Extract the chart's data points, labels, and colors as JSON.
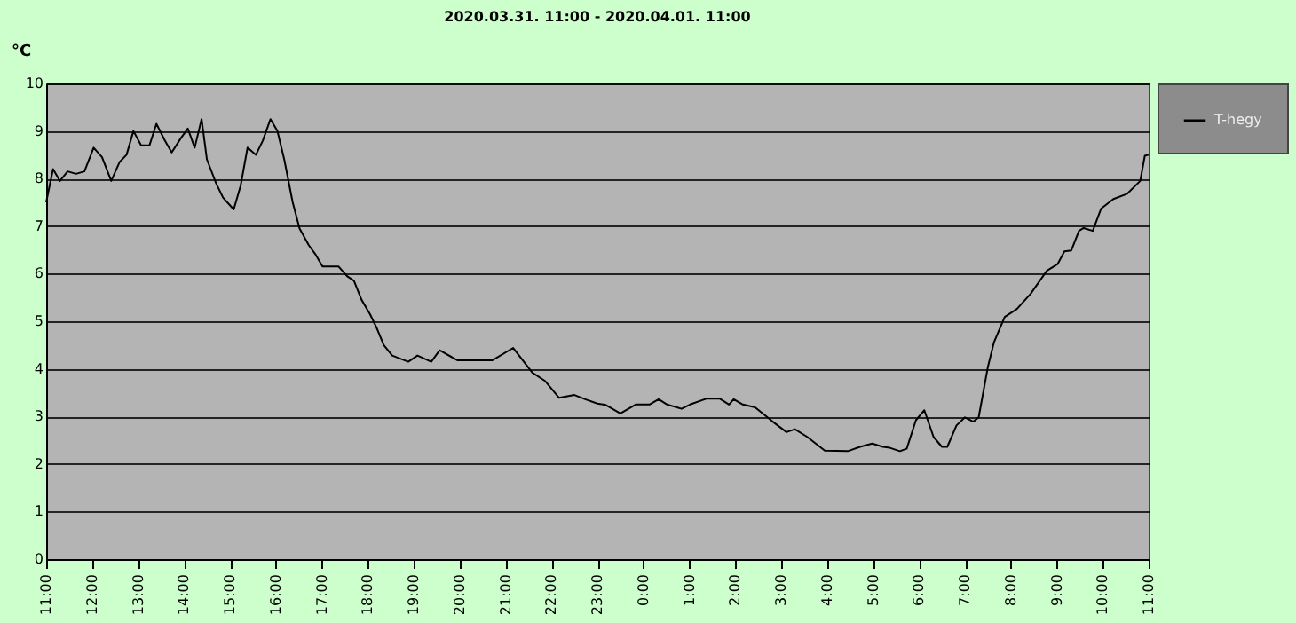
{
  "chart_data": {
    "type": "line",
    "title": "2020.03.31. 11:00 - 2020.04.01. 11:00",
    "ylabel": "°C",
    "x": [
      "2020-03-31T11:00",
      "2020-03-31T11:09",
      "2020-03-31T11:18",
      "2020-03-31T11:28",
      "2020-03-31T11:39",
      "2020-03-31T11:50",
      "2020-03-31T12:02",
      "2020-03-31T12:13",
      "2020-03-31T12:25",
      "2020-03-31T12:36",
      "2020-03-31T12:45",
      "2020-03-31T12:54",
      "2020-03-31T13:04",
      "2020-03-31T13:15",
      "2020-03-31T13:24",
      "2020-03-31T13:35",
      "2020-03-31T13:44",
      "2020-03-31T13:56",
      "2020-03-31T14:05",
      "2020-03-31T14:14",
      "2020-03-31T14:23",
      "2020-03-31T14:30",
      "2020-03-31T14:42",
      "2020-03-31T14:51",
      "2020-03-31T15:05",
      "2020-03-31T15:14",
      "2020-03-31T15:23",
      "2020-03-31T15:34",
      "2020-03-31T15:43",
      "2020-03-31T15:53",
      "2020-03-31T16:02",
      "2020-03-31T16:11",
      "2020-03-31T16:22",
      "2020-03-31T16:31",
      "2020-03-31T16:43",
      "2020-03-31T16:52",
      "2020-03-31T17:01",
      "2020-03-31T17:22",
      "2020-03-31T17:33",
      "2020-03-31T17:42",
      "2020-03-31T17:52",
      "2020-03-31T18:03",
      "2020-03-31T18:12",
      "2020-03-31T18:21",
      "2020-03-31T18:32",
      "2020-03-31T18:53",
      "2020-03-31T19:05",
      "2020-03-31T19:23",
      "2020-03-31T19:34",
      "2020-03-31T19:57",
      "2020-03-31T20:43",
      "2020-03-31T21:10",
      "2020-03-31T21:35",
      "2020-03-31T21:52",
      "2020-03-31T22:10",
      "2020-03-31T22:30",
      "2020-03-31T22:44",
      "2020-03-31T23:00",
      "2020-03-31T23:11",
      "2020-03-31T23:30",
      "2020-03-31T23:50",
      "2020-04-01T00:08",
      "2020-04-01T00:20",
      "2020-04-01T00:31",
      "2020-04-01T00:50",
      "2020-04-01T01:01",
      "2020-04-01T01:22",
      "2020-04-01T01:40",
      "2020-04-01T01:52",
      "2020-04-01T01:58",
      "2020-04-01T02:10",
      "2020-04-01T02:26",
      "2020-04-01T02:49",
      "2020-04-01T03:07",
      "2020-04-01T03:18",
      "2020-04-01T03:34",
      "2020-04-01T03:57",
      "2020-04-01T04:27",
      "2020-04-01T04:43",
      "2020-04-01T04:59",
      "2020-04-01T05:13",
      "2020-04-01T05:22",
      "2020-04-01T05:35",
      "2020-04-01T05:44",
      "2020-04-01T05:56",
      "2020-04-01T06:07",
      "2020-04-01T06:19",
      "2020-04-01T06:30",
      "2020-04-01T06:37",
      "2020-04-01T06:49",
      "2020-04-01T07:00",
      "2020-04-01T07:11",
      "2020-04-01T07:18",
      "2020-04-01T07:30",
      "2020-04-01T07:38",
      "2020-04-01T07:52",
      "2020-04-01T08:08",
      "2020-04-01T08:26",
      "2020-04-01T08:47",
      "2020-04-01T09:01",
      "2020-04-01T09:10",
      "2020-04-01T09:19",
      "2020-04-01T09:29",
      "2020-04-01T09:35",
      "2020-04-01T09:47",
      "2020-04-01T09:58",
      "2020-04-01T10:14",
      "2020-04-01T10:32",
      "2020-04-01T10:49",
      "2020-04-01T10:55",
      "2020-04-01T11:00"
    ],
    "series": [
      {
        "name": "T-hegy",
        "color": "#000000",
        "values": [
          7.5,
          8.2,
          7.95,
          8.15,
          8.1,
          8.15,
          8.65,
          8.45,
          7.95,
          8.35,
          8.5,
          9.0,
          8.7,
          8.7,
          9.15,
          8.8,
          8.55,
          8.85,
          9.05,
          8.65,
          9.25,
          8.4,
          7.9,
          7.6,
          7.35,
          7.85,
          8.65,
          8.5,
          8.8,
          9.25,
          9.0,
          8.4,
          7.5,
          6.95,
          6.6,
          6.4,
          6.15,
          6.15,
          5.95,
          5.85,
          5.45,
          5.15,
          4.85,
          4.5,
          4.28,
          4.15,
          4.28,
          4.15,
          4.39,
          4.18,
          4.18,
          4.44,
          3.92,
          3.74,
          3.39,
          3.45,
          3.36,
          3.27,
          3.24,
          3.06,
          3.25,
          3.25,
          3.36,
          3.25,
          3.16,
          3.25,
          3.37,
          3.37,
          3.25,
          3.36,
          3.25,
          3.19,
          2.89,
          2.67,
          2.73,
          2.57,
          2.28,
          2.27,
          2.36,
          2.43,
          2.36,
          2.34,
          2.27,
          2.32,
          2.92,
          3.13,
          2.57,
          2.36,
          2.36,
          2.81,
          2.98,
          2.89,
          2.98,
          4.04,
          4.56,
          5.09,
          5.26,
          5.58,
          6.06,
          6.2,
          6.47,
          6.49,
          6.9,
          6.96,
          6.9,
          7.37,
          7.57,
          7.68,
          7.95,
          8.48,
          8.5
        ]
      }
    ],
    "xlim": [
      "2020-03-31T11:00",
      "2020-04-01T11:00"
    ],
    "xticks": [
      {
        "value": "2020-03-31T11:00",
        "label": "11:00"
      },
      {
        "value": "2020-03-31T12:00",
        "label": "12:00"
      },
      {
        "value": "2020-03-31T13:00",
        "label": "13:00"
      },
      {
        "value": "2020-03-31T14:00",
        "label": "14:00"
      },
      {
        "value": "2020-03-31T15:00",
        "label": "15:00"
      },
      {
        "value": "2020-03-31T16:00",
        "label": "16:00"
      },
      {
        "value": "2020-03-31T17:00",
        "label": "17:00"
      },
      {
        "value": "2020-03-31T18:00",
        "label": "18:00"
      },
      {
        "value": "2020-03-31T19:00",
        "label": "19:00"
      },
      {
        "value": "2020-03-31T20:00",
        "label": "20:00"
      },
      {
        "value": "2020-03-31T21:00",
        "label": "21:00"
      },
      {
        "value": "2020-03-31T22:00",
        "label": "22:00"
      },
      {
        "value": "2020-03-31T23:00",
        "label": "23:00"
      },
      {
        "value": "2020-04-01T00:00",
        "label": "0:00"
      },
      {
        "value": "2020-04-01T01:00",
        "label": "1:00"
      },
      {
        "value": "2020-04-01T02:00",
        "label": "2:00"
      },
      {
        "value": "2020-04-01T03:00",
        "label": "3:00"
      },
      {
        "value": "2020-04-01T04:00",
        "label": "4:00"
      },
      {
        "value": "2020-04-01T05:00",
        "label": "5:00"
      },
      {
        "value": "2020-04-01T06:00",
        "label": "6:00"
      },
      {
        "value": "2020-04-01T07:00",
        "label": "7:00"
      },
      {
        "value": "2020-04-01T08:00",
        "label": "8:00"
      },
      {
        "value": "2020-04-01T09:00",
        "label": "9:00"
      },
      {
        "value": "2020-04-01T10:00",
        "label": "10:00"
      },
      {
        "value": "2020-04-01T11:00",
        "label": "11:00"
      }
    ],
    "ylim": [
      0,
      10
    ],
    "yticks": [
      0,
      1,
      2,
      3,
      4,
      5,
      6,
      7,
      8,
      9,
      10
    ],
    "grid": "y",
    "legend": "right",
    "marker": "none",
    "line_style": "solid"
  }
}
